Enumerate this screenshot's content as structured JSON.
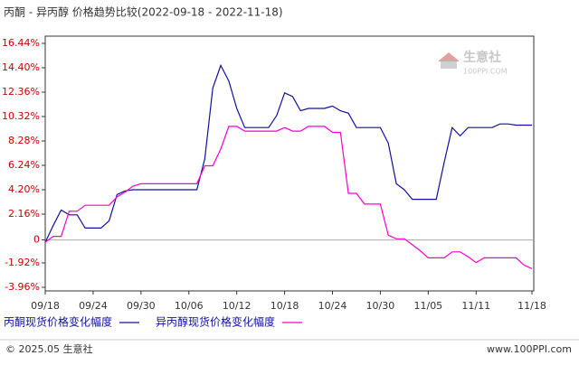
{
  "chart_data": {
    "type": "line",
    "title": "丙酮 - 异丙醇 价格趋势比较(2022-09-18 - 2022-11-18)",
    "categories": [
      "09/18",
      null,
      null,
      null,
      null,
      null,
      "09/24",
      null,
      null,
      null,
      null,
      null,
      "09/30",
      null,
      null,
      null,
      null,
      null,
      "10/06",
      null,
      null,
      null,
      null,
      null,
      "10/12",
      null,
      null,
      null,
      null,
      null,
      "10/18",
      null,
      null,
      null,
      null,
      null,
      "10/24",
      null,
      null,
      null,
      null,
      null,
      "10/30",
      null,
      null,
      null,
      null,
      null,
      "11/05",
      null,
      null,
      null,
      null,
      null,
      "11/11",
      null,
      null,
      null,
      null,
      null,
      null,
      "11/18"
    ],
    "series": [
      {
        "name": "丙酮现货价格变化幅度",
        "color": "#1010a0",
        "values": [
          -0.2,
          1.2,
          2.5,
          2.1,
          2.1,
          1.0,
          1.0,
          1.0,
          1.6,
          3.8,
          4.1,
          4.2,
          4.2,
          4.2,
          4.2,
          4.2,
          4.2,
          4.2,
          4.2,
          4.2,
          6.8,
          12.7,
          14.6,
          13.3,
          11.0,
          9.4,
          9.4,
          9.4,
          9.4,
          10.4,
          12.3,
          12.0,
          10.8,
          11.0,
          11.0,
          11.0,
          11.2,
          10.8,
          10.6,
          9.4,
          9.4,
          9.4,
          9.4,
          8.1,
          4.7,
          4.2,
          3.4,
          3.4,
          3.4,
          3.4,
          6.5,
          9.4,
          8.7,
          9.4,
          9.4,
          9.4,
          9.4,
          9.7,
          9.7,
          9.6,
          9.6,
          9.6
        ]
      },
      {
        "name": "异丙醇现货价格变化幅度",
        "color": "#ff00cc",
        "values": [
          -0.2,
          0.3,
          0.3,
          2.4,
          2.4,
          2.9,
          2.9,
          2.9,
          2.9,
          3.6,
          4.0,
          4.5,
          4.7,
          4.7,
          4.7,
          4.7,
          4.7,
          4.7,
          4.7,
          4.7,
          6.2,
          6.2,
          7.6,
          9.5,
          9.5,
          9.1,
          9.1,
          9.1,
          9.1,
          9.1,
          9.4,
          9.1,
          9.1,
          9.5,
          9.5,
          9.5,
          9.0,
          9.0,
          3.9,
          3.9,
          3.0,
          3.0,
          3.0,
          0.4,
          0.1,
          0.1,
          -0.4,
          -0.9,
          -1.5,
          -1.5,
          -1.5,
          -1.0,
          -1.0,
          -1.4,
          -1.9,
          -1.5,
          -1.5,
          -1.5,
          -1.5,
          -1.5,
          -2.1,
          -2.4
        ]
      }
    ],
    "ylim": [
      -3.96,
      16.44
    ],
    "yticks": [
      {
        "value": 16.44,
        "label": "16.44%"
      },
      {
        "value": 14.4,
        "label": "14.40%"
      },
      {
        "value": 12.36,
        "label": "12.36%"
      },
      {
        "value": 10.32,
        "label": "10.32%"
      },
      {
        "value": 8.28,
        "label": "8.28%"
      },
      {
        "value": 6.24,
        "label": "6.24%"
      },
      {
        "value": 4.2,
        "label": "4.20%"
      },
      {
        "value": 2.16,
        "label": "2.16%"
      },
      0,
      {
        "value": -1.92,
        "label": "-1.92%"
      },
      {
        "value": -3.96,
        "label": "-3.96%"
      }
    ],
    "zero_line": true,
    "watermark": {
      "name": "生意社",
      "site": "100PPI.COM"
    },
    "footer": {
      "copyright": "© 2025.05 生意社",
      "site": "www.100PPI.com"
    }
  }
}
